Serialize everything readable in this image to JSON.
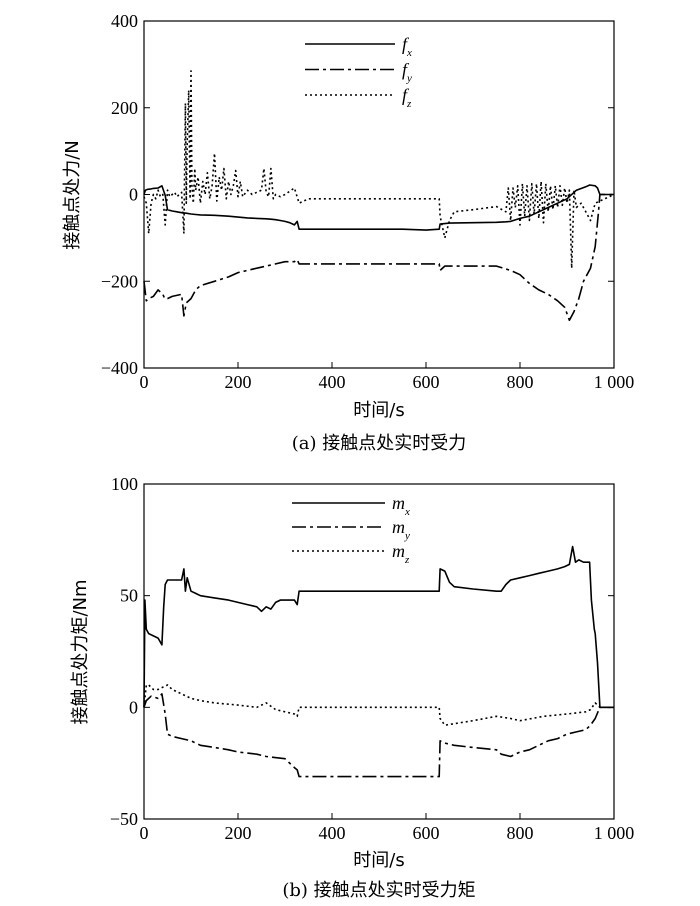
{
  "chart_data": [
    {
      "type": "line",
      "caption": "(a) 接触点处实时受力",
      "xlabel": "时间/s",
      "ylabel": "接触点处力/N",
      "xlim": [
        0,
        1000
      ],
      "ylim": [
        -400,
        400
      ],
      "xticks": [
        0,
        200,
        400,
        600,
        800,
        1000
      ],
      "xtick_labels": [
        "0",
        "200",
        "400",
        "600",
        "800",
        "1 000"
      ],
      "yticks": [
        -400,
        -200,
        0,
        200,
        400
      ],
      "ytick_labels": [
        "−400",
        "−200",
        "0",
        "200",
        "400"
      ],
      "series": [
        {
          "name": "f",
          "sub": "x",
          "style": "solid",
          "x": [
            0,
            3,
            8,
            15,
            20,
            30,
            38,
            42,
            45,
            50,
            60,
            70,
            80,
            90,
            100,
            110,
            120,
            150,
            180,
            200,
            220,
            240,
            260,
            270,
            280,
            290,
            300,
            310,
            320,
            326,
            330,
            360,
            400,
            450,
            500,
            550,
            600,
            628,
            630,
            640,
            650,
            700,
            750,
            770,
            780,
            800,
            820,
            840,
            860,
            880,
            900,
            920,
            940,
            945,
            948,
            960,
            965,
            970,
            990,
            1000
          ],
          "y": [
            0,
            10,
            12,
            13,
            14,
            15,
            20,
            8,
            -2,
            -35,
            -38,
            -40,
            -42,
            -43,
            -45,
            -46,
            -47,
            -48,
            -50,
            -52,
            -54,
            -55,
            -56,
            -57,
            -58,
            -60,
            -62,
            -65,
            -70,
            -62,
            -80,
            -80,
            -80,
            -80,
            -80,
            -80,
            -82,
            -80,
            -68,
            -67,
            -66,
            -65,
            -64,
            -63,
            -62,
            -55,
            -50,
            -40,
            -30,
            -20,
            -10,
            10,
            18,
            20,
            22,
            20,
            15,
            0,
            0,
            0
          ]
        },
        {
          "name": "f",
          "sub": "y",
          "style": "dashdot",
          "x": [
            0,
            5,
            10,
            20,
            30,
            40,
            44,
            50,
            60,
            80,
            85,
            90,
            100,
            110,
            120,
            150,
            180,
            200,
            220,
            240,
            260,
            280,
            300,
            320,
            326,
            330,
            400,
            500,
            600,
            628,
            630,
            640,
            700,
            750,
            780,
            800,
            820,
            840,
            860,
            880,
            895,
            905,
            915,
            925,
            935,
            950,
            960,
            967,
            970,
            1000
          ],
          "y": [
            -200,
            -245,
            -240,
            -235,
            -220,
            -230,
            -240,
            -240,
            -235,
            -230,
            -280,
            -250,
            -240,
            -220,
            -210,
            -200,
            -190,
            -180,
            -175,
            -170,
            -165,
            -160,
            -155,
            -155,
            -150,
            -160,
            -160,
            -160,
            -160,
            -160,
            -175,
            -165,
            -165,
            -165,
            -175,
            -185,
            -205,
            -220,
            -230,
            -245,
            -260,
            -290,
            -270,
            -240,
            -200,
            -170,
            -120,
            -40,
            0,
            0
          ]
        },
        {
          "name": "f",
          "sub": "z",
          "style": "dot",
          "x": [
            0,
            5,
            10,
            15,
            20,
            25,
            30,
            35,
            40,
            45,
            50,
            55,
            60,
            65,
            70,
            75,
            80,
            85,
            88,
            90,
            92,
            95,
            98,
            100,
            102,
            105,
            108,
            110,
            115,
            120,
            125,
            130,
            135,
            140,
            145,
            150,
            155,
            160,
            165,
            170,
            175,
            180,
            185,
            190,
            195,
            200,
            205,
            210,
            220,
            230,
            240,
            250,
            255,
            260,
            265,
            270,
            275,
            280,
            290,
            300,
            320,
            330,
            350,
            400,
            450,
            500,
            550,
            600,
            628,
            630,
            640,
            650,
            660,
            700,
            750,
            770,
            775,
            780,
            785,
            790,
            795,
            800,
            805,
            810,
            815,
            820,
            825,
            830,
            835,
            840,
            845,
            850,
            855,
            860,
            865,
            870,
            875,
            880,
            885,
            890,
            895,
            900,
            905,
            910,
            915,
            920,
            930,
            940,
            950,
            960,
            1000
          ],
          "y": [
            -5,
            -20,
            -90,
            -20,
            0,
            -10,
            10,
            -5,
            0,
            -70,
            10,
            -5,
            0,
            5,
            -5,
            0,
            5,
            -90,
            210,
            -20,
            120,
            240,
            -10,
            285,
            20,
            -20,
            60,
            10,
            40,
            -20,
            30,
            0,
            50,
            -10,
            20,
            95,
            -15,
            40,
            10,
            60,
            -10,
            30,
            0,
            20,
            55,
            -5,
            30,
            -5,
            10,
            0,
            5,
            10,
            60,
            5,
            -5,
            60,
            -10,
            0,
            -5,
            0,
            15,
            -20,
            -10,
            -10,
            -10,
            -10,
            -10,
            -10,
            -10,
            -50,
            -100,
            -60,
            -40,
            -35,
            -28,
            -40,
            15,
            -60,
            15,
            -30,
            20,
            -70,
            25,
            -50,
            20,
            -60,
            25,
            -45,
            25,
            -55,
            30,
            -65,
            25,
            -40,
            20,
            -35,
            20,
            -30,
            20,
            -25,
            15,
            -20,
            10,
            -170,
            10,
            -30,
            -20,
            -40,
            -60,
            -20,
            0
          ]
        }
      ]
    },
    {
      "type": "line",
      "caption": "(b) 接触点处实时受力矩",
      "xlabel": "时间/s",
      "ylabel": "接触点处力矩/Nm",
      "xlim": [
        0,
        1000
      ],
      "ylim": [
        -50,
        100
      ],
      "xticks": [
        0,
        200,
        400,
        600,
        800,
        1000
      ],
      "xtick_labels": [
        "0",
        "200",
        "400",
        "600",
        "800",
        "1 000"
      ],
      "yticks": [
        -50,
        0,
        50,
        100
      ],
      "ytick_labels": [
        "−50",
        "0",
        "50",
        "100"
      ],
      "series": [
        {
          "name": "m",
          "sub": "x",
          "style": "solid",
          "x": [
            0,
            2,
            5,
            10,
            20,
            30,
            38,
            42,
            45,
            50,
            60,
            70,
            80,
            85,
            88,
            92,
            100,
            110,
            120,
            150,
            180,
            200,
            220,
            240,
            250,
            260,
            270,
            280,
            290,
            300,
            310,
            320,
            326,
            330,
            400,
            500,
            600,
            628,
            630,
            640,
            650,
            660,
            700,
            750,
            760,
            770,
            780,
            800,
            820,
            840,
            860,
            880,
            895,
            905,
            912,
            918,
            925,
            935,
            948,
            952,
            958,
            960,
            965,
            970,
            1000
          ],
          "y": [
            0,
            48,
            35,
            33,
            32,
            31,
            28,
            45,
            55,
            57,
            57,
            57,
            57,
            62,
            52,
            58,
            52,
            51,
            50,
            49,
            48,
            47,
            46,
            45,
            43,
            45,
            44,
            47,
            48,
            48,
            48,
            48,
            46,
            52,
            52,
            52,
            52,
            52,
            62,
            61,
            56,
            54,
            53,
            52,
            52,
            55,
            57,
            58,
            59,
            60,
            61,
            62,
            63,
            64,
            72,
            65,
            66,
            65,
            65,
            48,
            35,
            33,
            20,
            0,
            0
          ]
        },
        {
          "name": "m",
          "sub": "y",
          "style": "dashdot",
          "x": [
            0,
            5,
            15,
            30,
            38,
            45,
            50,
            60,
            80,
            100,
            120,
            150,
            180,
            200,
            240,
            260,
            300,
            320,
            326,
            330,
            400,
            500,
            600,
            628,
            630,
            640,
            660,
            700,
            750,
            760,
            780,
            800,
            820,
            840,
            860,
            880,
            900,
            920,
            940,
            950,
            960,
            970,
            1000
          ],
          "y": [
            0,
            3,
            5,
            4,
            6,
            -3,
            -12,
            -13,
            -14,
            -15,
            -17,
            -18,
            -19,
            -20,
            -21,
            -22,
            -23,
            -27,
            -28,
            -31,
            -31,
            -31,
            -31,
            -31,
            -15,
            -16,
            -17,
            -18,
            -19,
            -21,
            -22,
            -20,
            -19,
            -17,
            -15,
            -14,
            -12,
            -11,
            -10,
            -8,
            -5,
            0,
            0
          ]
        },
        {
          "name": "m",
          "sub": "z",
          "style": "dot",
          "x": [
            0,
            5,
            10,
            20,
            30,
            40,
            50,
            60,
            80,
            100,
            120,
            150,
            200,
            240,
            260,
            280,
            300,
            320,
            326,
            330,
            400,
            500,
            600,
            628,
            630,
            640,
            700,
            750,
            780,
            800,
            850,
            900,
            940,
            950,
            960,
            970,
            1000
          ],
          "y": [
            0,
            10,
            10,
            8,
            8,
            9,
            10,
            8,
            6,
            4,
            3,
            2,
            1,
            0,
            2,
            -1,
            -2,
            -3,
            -4,
            0,
            0,
            0,
            0,
            0,
            -5,
            -8,
            -6,
            -4,
            -5,
            -6,
            -4,
            -3,
            -2,
            -1,
            2,
            0,
            0
          ]
        }
      ]
    }
  ]
}
